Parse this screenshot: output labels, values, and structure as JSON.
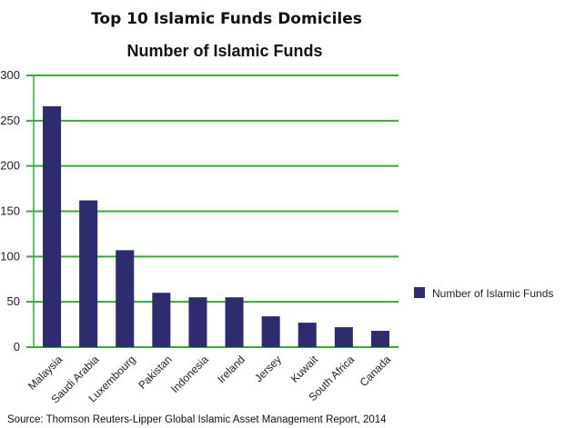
{
  "chart_data": {
    "type": "bar",
    "title": "Top 10 Islamic Funds Domiciles",
    "subtitle": "Number of Islamic Funds",
    "categories": [
      "Malaysia",
      "Saudi Arabia",
      "Luxembourg",
      "Pakistan",
      "Indonesia",
      "Ireland",
      "Jersey",
      "Kuwait",
      "South Africa",
      "Canada"
    ],
    "series": [
      {
        "name": "Number of Islamic Funds",
        "values": [
          266,
          162,
          107,
          60,
          55,
          55,
          34,
          27,
          22,
          18
        ],
        "color": "#2e2c6e"
      }
    ],
    "xlabel": "",
    "ylabel": "",
    "ylim": [
      0,
      300
    ],
    "yticks": [
      0,
      50,
      100,
      150,
      200,
      250,
      300
    ],
    "grid": true,
    "grid_color": "#3aaa35",
    "legend_position": "right",
    "source": "Source: Thomson Reuters-Lipper Global Islamic Asset Management Report, 2014"
  }
}
